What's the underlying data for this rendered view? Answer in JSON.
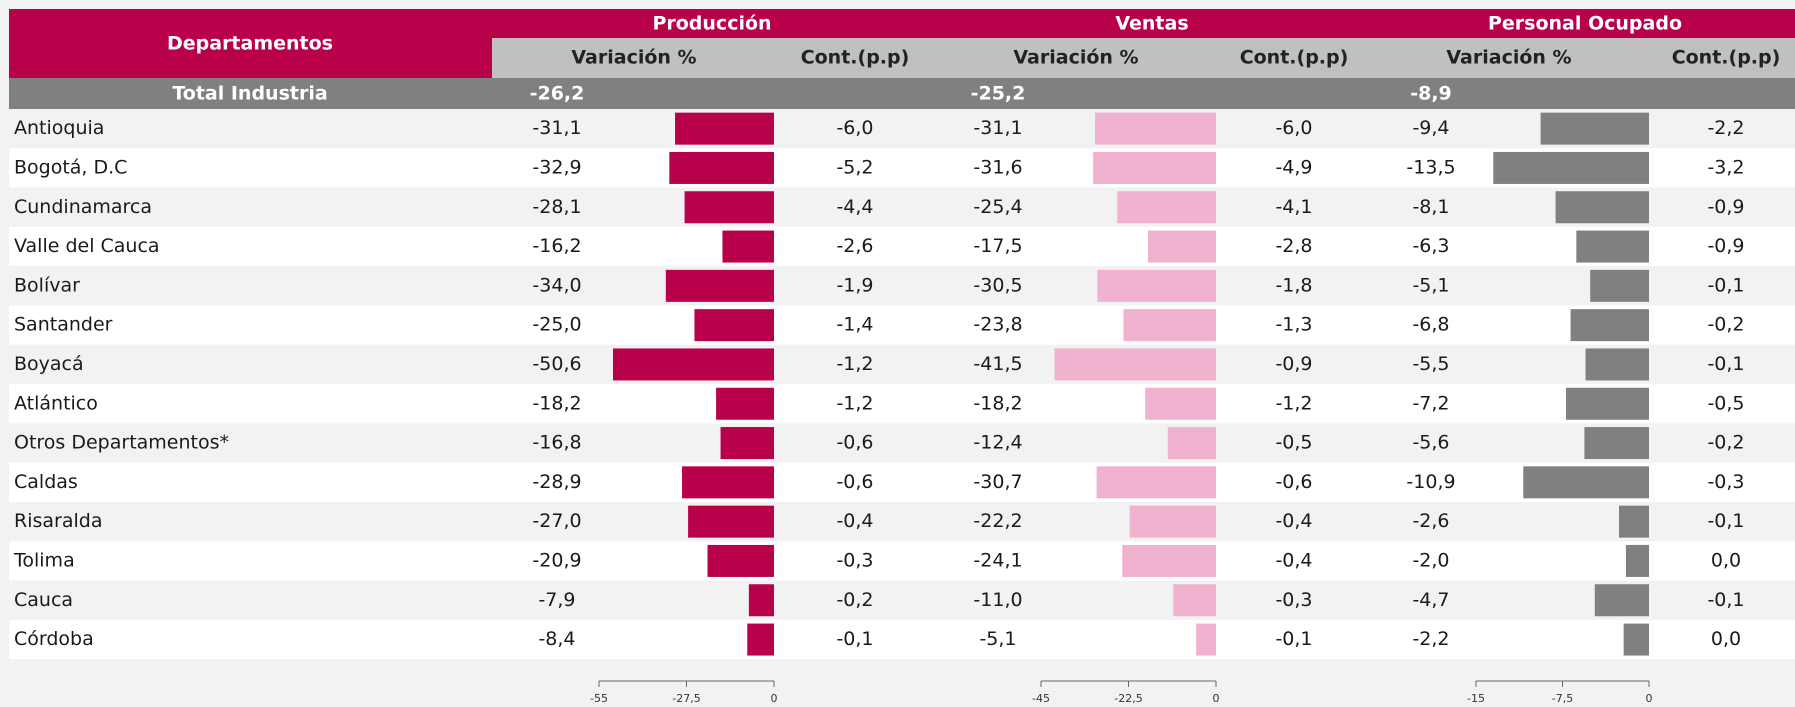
{
  "table": {
    "header": "Departamentos",
    "total_label": "Total Industria",
    "rows": [
      "Antioquia",
      "Bogotá, D.C",
      "Cundinamarca",
      "Valle del Cauca",
      "Bolívar",
      "Santander",
      "Boyacá",
      "Atlántico",
      "Otros Departamentos*",
      "Caldas",
      "Risaralda",
      "Tolima",
      "Cauca",
      "Córdoba"
    ],
    "groups": [
      {
        "title": "Producción",
        "var_header": "Variación %",
        "cont_header": "Cont.(p.p)",
        "color": "#b8004b",
        "total": "-26,2",
        "values": [
          -31.1,
          -32.9,
          -28.1,
          -16.2,
          -34.0,
          -25.0,
          -50.6,
          -18.2,
          -16.8,
          -28.9,
          -27.0,
          -20.9,
          -7.9,
          -8.4
        ],
        "value_labels": [
          "-31,1",
          "-32,9",
          "-28,1",
          "-16,2",
          "-34,0",
          "-25,0",
          "-50,6",
          "-18,2",
          "-16,8",
          "-28,9",
          "-27,0",
          "-20,9",
          "-7,9",
          "-8,4"
        ],
        "cont": [
          "-6,0",
          "-5,2",
          "-4,4",
          "-2,6",
          "-1,9",
          "-1,4",
          "-1,2",
          "-1,2",
          "-0,6",
          "-0,6",
          "-0,4",
          "-0,3",
          "-0,2",
          "-0,1"
        ],
        "xlim": [
          -55,
          0
        ],
        "xticks": [
          -55,
          {
            "value": -27.5,
            "label": "-27,5"
          },
          0
        ]
      },
      {
        "title": "Ventas",
        "var_header": "Variación %",
        "cont_header": "Cont.(p.p)",
        "color": "#f0b2cf",
        "total": "-25,2",
        "values": [
          -31.1,
          -31.6,
          -25.4,
          -17.5,
          -30.5,
          -23.8,
          -41.5,
          -18.2,
          -12.4,
          -30.7,
          -22.2,
          -24.1,
          -11.0,
          -5.1
        ],
        "value_labels": [
          "-31,1",
          "-31,6",
          "-25,4",
          "-17,5",
          "-30,5",
          "-23,8",
          "-41,5",
          "-18,2",
          "-12,4",
          "-30,7",
          "-22,2",
          "-24,1",
          "-11,0",
          "-5,1"
        ],
        "cont": [
          "-6,0",
          "-4,9",
          "-4,1",
          "-2,8",
          "-1,8",
          "-1,3",
          "-0,9",
          "-1,2",
          "-0,5",
          "-0,6",
          "-0,4",
          "-0,4",
          "-0,3",
          "-0,1"
        ],
        "xlim": [
          -45,
          0
        ],
        "xticks": [
          -45,
          {
            "value": -22.5,
            "label": "-22,5"
          },
          0
        ]
      },
      {
        "title": "Personal Ocupado",
        "var_header": "Variación %",
        "cont_header": "Cont.(p.p)",
        "color": "#808080",
        "total": "-8,9",
        "values": [
          -9.4,
          -13.5,
          -8.1,
          -6.3,
          -5.1,
          -6.8,
          -5.5,
          -7.2,
          -5.6,
          -10.9,
          -2.6,
          -2.0,
          -4.7,
          -2.2
        ],
        "value_labels": [
          "-9,4",
          "-13,5",
          "-8,1",
          "-6,3",
          "-5,1",
          "-6,8",
          "-5,5",
          "-7,2",
          "-5,6",
          "-10,9",
          "-2,6",
          "-2,0",
          "-4,7",
          "-2,2"
        ],
        "cont": [
          "-2,2",
          "-3,2",
          "-0,9",
          "-0,9",
          "-0,1",
          "-0,2",
          "-0,1",
          "-0,5",
          "-0,2",
          "-0,3",
          "-0,1",
          "0,0",
          "-0,1",
          "0,0"
        ],
        "xlim": [
          -15,
          0
        ],
        "xticks": [
          -15,
          {
            "value": -7.5,
            "label": "-7,5"
          },
          0
        ]
      }
    ]
  }
}
